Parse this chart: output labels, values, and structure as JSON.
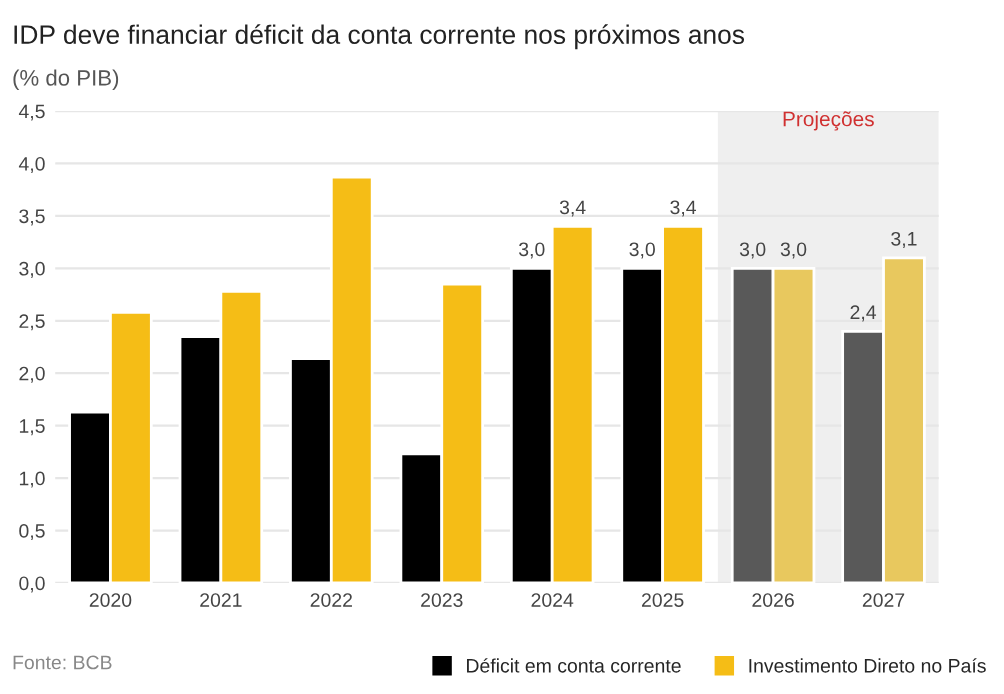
{
  "chart_data": {
    "type": "bar",
    "title": "IDP deve financiar déficit da conta corrente nos próximos anos",
    "subtitle": "(% do PIB)",
    "categories": [
      "2020",
      "2021",
      "2022",
      "2023",
      "2024",
      "2025",
      "2026",
      "2027"
    ],
    "series": [
      {
        "name": "Déficit em conta corrente",
        "color": "#000000",
        "colors": [
          "#000000",
          "#000000",
          "#000000",
          "#000000",
          "#000000",
          "#000000",
          "#595959",
          "#595959"
        ],
        "values": [
          1.63,
          2.35,
          2.14,
          1.23,
          3.0,
          3.0,
          3.0,
          2.4
        ],
        "value_labels": [
          null,
          null,
          null,
          null,
          "3,0",
          "3,0",
          "3,0",
          "2,4"
        ]
      },
      {
        "name": "Investimento Direto no País",
        "color": "#f5bd16",
        "colors": [
          "#f5bd16",
          "#f5bd16",
          "#f5bd16",
          "#f5bd16",
          "#f5bd16",
          "#f5bd16",
          "#e8c85e",
          "#e8c85e"
        ],
        "values": [
          2.58,
          2.78,
          3.87,
          2.85,
          3.4,
          3.4,
          3.0,
          3.1
        ],
        "value_labels": [
          null,
          null,
          null,
          null,
          "3,4",
          "3,4",
          "3,0",
          "3,1"
        ]
      }
    ],
    "ylim": [
      0,
      4.5
    ],
    "yticks": [
      {
        "value": 0,
        "label": "0,0"
      },
      {
        "value": 0.5,
        "label": "0,5"
      },
      {
        "value": 1,
        "label": "1,0"
      },
      {
        "value": 1.5,
        "label": "1,5"
      },
      {
        "value": 2,
        "label": "2,0"
      },
      {
        "value": 2.5,
        "label": "2,5"
      },
      {
        "value": 3,
        "label": "3,0"
      },
      {
        "value": 3.5,
        "label": "3,5"
      },
      {
        "value": 4,
        "label": "4,0"
      },
      {
        "value": 4.5,
        "label": "4,5"
      }
    ],
    "grid": "y",
    "legend": "bottom right",
    "marker": "square",
    "bands": [
      {
        "axis": "x",
        "from": "2026",
        "to": "2027",
        "label": "Projeções",
        "color": "#efefef"
      }
    ],
    "annotations": [
      "Fonte: BCB"
    ]
  }
}
